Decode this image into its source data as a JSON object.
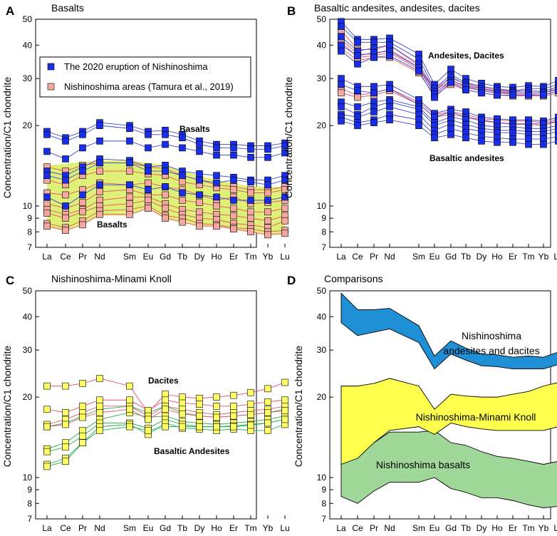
{
  "figure": {
    "ylabel": "Concentration/C1 chondrite",
    "elements": [
      "La",
      "Ce",
      "Pr",
      "Nd",
      "Sm",
      "Eu",
      "Gd",
      "Tb",
      "Dy",
      "Ho",
      "Er",
      "Tm",
      "Yb",
      "Lu"
    ],
    "ticks": [
      7,
      8,
      9,
      10,
      20,
      30,
      40,
      50
    ],
    "colors": {
      "blue": "#1a2ee6",
      "blue_line": "#3a48d8",
      "pink": "#f4a8a0",
      "pink_line": "#e8506a",
      "yellow": "#ffff66",
      "green_line": "#22b04a",
      "basalt_field": "#dff077",
      "d_blue": "#1f8fd6",
      "d_yellow": "#ffff4d",
      "d_green": "#a0d89a"
    }
  },
  "chart_data": [
    {
      "type": "line",
      "panel": "A",
      "title": "Basalts",
      "ylim": [
        7,
        50
      ],
      "legend": [
        "The 2020 eruption of Nishinoshima",
        "Nishinoshima areas (Tamura et al., 2019)"
      ],
      "annotations": [
        "Basalts",
        "Basalts"
      ],
      "field_upper": [
        14.2,
        14.4,
        14.6,
        14.8,
        14.8,
        14.5,
        14.2,
        13.5,
        13,
        12.5,
        12.2,
        11.8,
        11.8,
        11.8
      ],
      "field_lower": [
        8.3,
        8.1,
        8.5,
        9.2,
        9.2,
        9.8,
        9.0,
        8.7,
        8.4,
        8.4,
        8.2,
        8.0,
        7.8,
        7.8
      ],
      "series_2020": [
        [
          19,
          18,
          19,
          20.5,
          20,
          19,
          19.2,
          18.5,
          17.5,
          17,
          17,
          16.8,
          16.8,
          17.2
        ],
        [
          18.5,
          17.5,
          18.5,
          20,
          19.5,
          18.5,
          18.5,
          18,
          17,
          16.5,
          16.5,
          16.3,
          16.3,
          16.8
        ],
        [
          16,
          15,
          16.5,
          17.5,
          17.5,
          16.5,
          17,
          16.5,
          16,
          15.5,
          15.5,
          15.2,
          15.2,
          15.8
        ],
        [
          13.5,
          13,
          14,
          15,
          14.8,
          14,
          14.2,
          13.5,
          13.2,
          13,
          12.8,
          12.5,
          12.5,
          13
        ],
        [
          13,
          12.5,
          13.5,
          14.5,
          14.5,
          13.5,
          13.5,
          13,
          12.5,
          12.2,
          12.5,
          12.3,
          12,
          12.5
        ],
        [
          10.8,
          10,
          11,
          12,
          12,
          11.5,
          11.8,
          11.2,
          11,
          10.8,
          10.5,
          10.5,
          10.5,
          10.8
        ]
      ],
      "series_tamura": [
        [
          14,
          13.5,
          14.2,
          14.5,
          14.5,
          14,
          13.8,
          13,
          12.5,
          12,
          11.8,
          11.5,
          11.5,
          11.8
        ],
        [
          12.5,
          12,
          13,
          13.5,
          13.5,
          13.2,
          13,
          12.3,
          12,
          11.7,
          11.5,
          11.2,
          11.2,
          11.5
        ],
        [
          11.2,
          11,
          11.5,
          12.2,
          12,
          12.2,
          11.8,
          11.5,
          11,
          10.5,
          10.8,
          10.2,
          10.3,
          10.5
        ],
        [
          10.2,
          9.8,
          10.3,
          11.3,
          11.5,
          11,
          11,
          10.5,
          10.3,
          10,
          9.8,
          9.5,
          9.5,
          9.8
        ],
        [
          9.7,
          9.3,
          9.7,
          10.5,
          10.8,
          10.8,
          10.2,
          9.7,
          9.5,
          9.3,
          9.2,
          9,
          8.8,
          9.2
        ],
        [
          9.4,
          9,
          9.5,
          10,
          10.2,
          10.5,
          9.8,
          9.3,
          9,
          8.9,
          8.6,
          8.5,
          8.3,
          8.8
        ],
        [
          8.6,
          8.3,
          8.8,
          9.6,
          9.7,
          10,
          9.2,
          9,
          8.6,
          8.5,
          8.3,
          8.2,
          8,
          8.1
        ],
        [
          8.4,
          8.1,
          8.5,
          9.3,
          9.3,
          9.8,
          9,
          8.7,
          8.4,
          8.4,
          8.2,
          8,
          7.8,
          7.9
        ]
      ]
    },
    {
      "type": "line",
      "panel": "B",
      "title": "Basaltic andesites, andesites, dacites",
      "ylim": [
        7,
        50
      ],
      "annotations": [
        "Andesites, Dacites",
        "Basaltic andesites"
      ],
      "series_2020": [
        [
          49,
          42,
          42,
          42.5,
          37,
          28.5,
          32.5,
          30,
          28.8,
          28,
          27.8,
          28.2,
          28,
          29.5
        ],
        [
          47,
          41,
          41,
          41,
          35.5,
          27.5,
          31,
          29,
          28,
          27.5,
          27,
          27.5,
          27.5,
          28.5
        ],
        [
          43,
          38,
          39,
          40,
          34,
          26.8,
          30.5,
          28.5,
          27.5,
          27,
          26.8,
          27,
          26.8,
          28
        ],
        [
          40,
          36.5,
          37.5,
          38,
          33,
          26.2,
          29.5,
          28,
          27,
          26.5,
          26.5,
          26.5,
          26.5,
          27.5
        ],
        [
          38,
          34,
          36,
          36.5,
          32,
          25.5,
          29,
          27.2,
          26.5,
          26,
          26,
          26,
          26,
          27
        ],
        [
          30,
          28,
          28,
          28.5,
          25,
          22.2,
          23,
          22.5,
          21.5,
          21.2,
          21,
          21,
          20.8,
          21.5
        ],
        [
          28.5,
          27,
          26.5,
          27.5,
          24,
          21.5,
          22.5,
          21.5,
          21,
          20.5,
          20.3,
          20.3,
          20.3,
          20.8
        ],
        [
          24.5,
          23.5,
          24.5,
          25,
          23.5,
          20.5,
          21.5,
          21,
          20,
          19.8,
          19.8,
          19.5,
          19.5,
          20
        ],
        [
          23.5,
          22,
          23.5,
          24.5,
          23,
          20,
          21,
          20.2,
          19.5,
          19.2,
          19.2,
          19,
          19,
          19.5
        ],
        [
          22,
          21.5,
          22.5,
          23.5,
          22,
          19.2,
          20.3,
          19.5,
          19,
          18.8,
          18.8,
          18.5,
          18.5,
          19
        ],
        [
          21.5,
          20.5,
          21,
          22,
          21,
          18.5,
          19.5,
          18.8,
          18.2,
          18,
          17.8,
          17.8,
          17.8,
          18.2
        ],
        [
          20.8,
          20,
          20.5,
          21,
          20,
          18,
          18.5,
          18,
          17.5,
          17.3,
          17.3,
          17,
          17,
          17.5
        ]
      ],
      "series_tamura": [
        [
          45.5,
          38.5,
          38.5,
          40,
          33.5,
          27.5,
          30,
          28.8,
          27.8,
          27.2,
          27,
          27,
          26.8,
          28
        ],
        [
          42,
          37,
          37,
          38.5,
          33,
          27,
          29.5,
          28.2,
          27.3,
          26.8,
          26.5,
          26.5,
          26.5,
          27.3
        ],
        [
          41,
          36,
          36.5,
          37.5,
          32.5,
          26.5,
          29,
          27.8,
          27,
          26.5,
          26.2,
          26.2,
          26,
          27
        ],
        [
          39,
          35,
          36,
          36,
          31.5,
          26,
          28.5,
          27.2,
          26.5,
          26,
          25.8,
          25.8,
          25.8,
          26.5
        ],
        [
          27.5,
          26,
          26.5,
          27.5,
          24.5,
          22,
          22.5,
          22,
          21.2,
          21,
          20.8,
          20.8,
          20.5,
          21.2
        ],
        [
          26.5,
          25.5,
          26,
          27,
          24,
          21.5,
          22,
          21.5,
          20.8,
          20.5,
          20.2,
          20.2,
          20,
          20.8
        ]
      ]
    },
    {
      "type": "line",
      "panel": "C",
      "title": "Nishinoshima-Minami Knoll",
      "ylim": [
        7,
        50
      ],
      "annotations": [
        "Dacites",
        "Basaltic Andesites"
      ],
      "series_red": [
        [
          22,
          22,
          22.5,
          23.5,
          22,
          17.5,
          20.5,
          20,
          19.8,
          20,
          20.3,
          20.8,
          21.5,
          22.7
        ],
        [
          18,
          17.5,
          18.5,
          19.5,
          19.5,
          17.8,
          19.5,
          19,
          18.8,
          18.5,
          18.5,
          18.8,
          19.2,
          19.5
        ],
        [
          15.8,
          16.5,
          17.5,
          18.5,
          18.5,
          17,
          18.5,
          18,
          17.5,
          17.2,
          17.5,
          17.8,
          18,
          18.5
        ],
        [
          15.5,
          15.8,
          16.8,
          17.5,
          18,
          16.5,
          18,
          17.3,
          17,
          16.8,
          17,
          17.2,
          17.5,
          17.8
        ]
      ],
      "series_green": [
        [
          15.5,
          16,
          17,
          18,
          18.5,
          17.5,
          18.5,
          17.5,
          17,
          16.8,
          17,
          17.2,
          17.5,
          18
        ],
        [
          12.8,
          13.5,
          15,
          16.5,
          17.5,
          16.8,
          17,
          16.2,
          16,
          15.8,
          16,
          16.2,
          16.5,
          17
        ],
        [
          12.5,
          13,
          14.3,
          16,
          16,
          15.3,
          16.5,
          15.8,
          15.5,
          15.5,
          15.6,
          15.8,
          16,
          16.5
        ],
        [
          11.2,
          11.8,
          13.5,
          15.5,
          15.8,
          14.5,
          16,
          15.3,
          15.2,
          15,
          15.2,
          15,
          15,
          15.8
        ],
        [
          11,
          11.5,
          13.5,
          15,
          15.5,
          15,
          15.5,
          15.5,
          15.5,
          15.5,
          15.5,
          15.7,
          16,
          16.5
        ]
      ]
    },
    {
      "type": "area",
      "panel": "D",
      "title": "Comparisons",
      "ylim": [
        7,
        50
      ],
      "fields": [
        {
          "name": "Nishinoshima andesites and dacites",
          "label_lines": [
            "Nishinoshima",
            "andesites and dacites"
          ],
          "upper": [
            49,
            42.5,
            42.5,
            43,
            37,
            28.5,
            32.5,
            30.5,
            29,
            28.8,
            28.2,
            28.5,
            28.2,
            29.5
          ],
          "lower": [
            38,
            34,
            35,
            36,
            32,
            25.5,
            29,
            27.5,
            26.2,
            26,
            25.5,
            25.5,
            25.5,
            26.5
          ]
        },
        {
          "name": "Nishinoshima-Minami Knoll",
          "label_lines": [
            "Nishinoshima-Minami Knoll"
          ],
          "upper": [
            22,
            22,
            22.5,
            23.5,
            22,
            18,
            20.5,
            20.2,
            20,
            20,
            20.5,
            21,
            22,
            22.7
          ],
          "lower": [
            11.2,
            11.8,
            13.5,
            15,
            15.5,
            14.5,
            16,
            15.5,
            15.2,
            15,
            15,
            15,
            15,
            15.5
          ]
        },
        {
          "name": "Nishinoshima basalts",
          "label_lines": [
            "Nishinoshima basalts"
          ],
          "upper": [
            11.2,
            12.2,
            13.5,
            14.8,
            14.8,
            15,
            13.5,
            13.2,
            12.5,
            12,
            11.8,
            11.5,
            11.2,
            11.5
          ],
          "lower": [
            8.5,
            8,
            8.9,
            9.6,
            9.6,
            10,
            9.1,
            8.8,
            8.4,
            8.4,
            8.2,
            7.9,
            7.7,
            7.8
          ]
        }
      ]
    }
  ]
}
